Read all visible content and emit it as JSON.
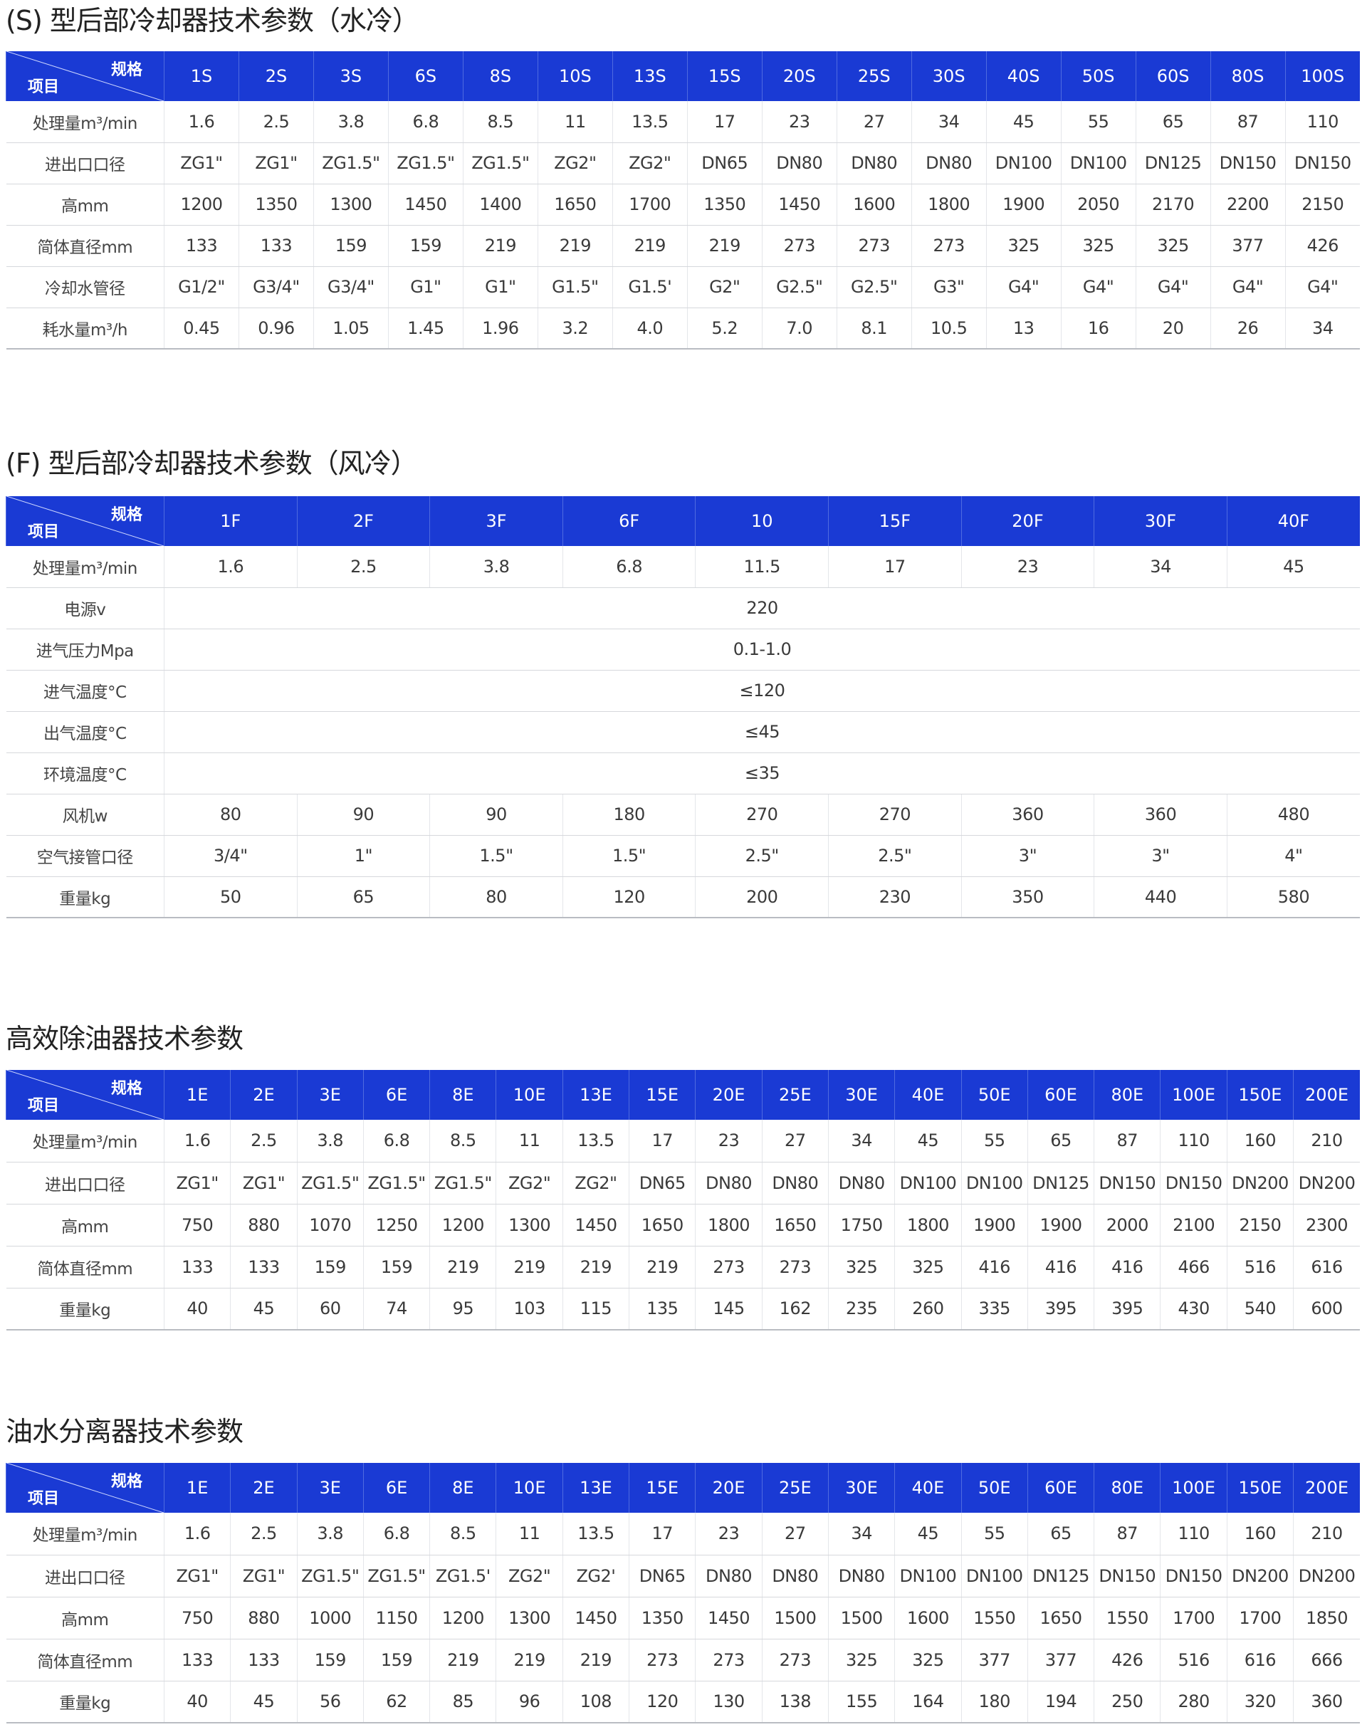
{
  "header_colors": {
    "table_header": "#1a3ad4"
  },
  "tables": [
    {
      "title": "(S) 型后部冷却器技术参数（水冷）",
      "corner_top": "规格",
      "corner_bottom": "项目",
      "columns": [
        "1S",
        "2S",
        "3S",
        "6S",
        "8S",
        "10S",
        "13S",
        "15S",
        "20S",
        "25S",
        "30S",
        "40S",
        "50S",
        "60S",
        "80S",
        "100S"
      ],
      "rows": [
        {
          "label": "处理量m³/min",
          "values": [
            "1.6",
            "2.5",
            "3.8",
            "6.8",
            "8.5",
            "11",
            "13.5",
            "17",
            "23",
            "27",
            "34",
            "45",
            "55",
            "65",
            "87",
            "110"
          ]
        },
        {
          "label": "进出口口径",
          "values": [
            "ZG1\"",
            "ZG1\"",
            "ZG1.5\"",
            "ZG1.5\"",
            "ZG1.5\"",
            "ZG2\"",
            "ZG2\"",
            "DN65",
            "DN80",
            "DN80",
            "DN80",
            "DN100",
            "DN100",
            "DN125",
            "DN150",
            "DN150"
          ]
        },
        {
          "label": "高mm",
          "values": [
            "1200",
            "1350",
            "1300",
            "1450",
            "1400",
            "1650",
            "1700",
            "1350",
            "1450",
            "1600",
            "1800",
            "1900",
            "2050",
            "2170",
            "2200",
            "2150"
          ]
        },
        {
          "label": "简体直径mm",
          "values": [
            "133",
            "133",
            "159",
            "159",
            "219",
            "219",
            "219",
            "219",
            "273",
            "273",
            "273",
            "325",
            "325",
            "325",
            "377",
            "426"
          ]
        },
        {
          "label": "冷却水管径",
          "values": [
            "G1/2\"",
            "G3/4\"",
            "G3/4\"",
            "G1\"",
            "G1\"",
            "G1.5\"",
            "G1.5'",
            "G2\"",
            "G2.5\"",
            "G2.5\"",
            "G3\"",
            "G4\"",
            "G4\"",
            "G4\"",
            "G4\"",
            "G4\""
          ]
        },
        {
          "label": "耗水量m³/h",
          "values": [
            "0.45",
            "0.96",
            "1.05",
            "1.45",
            "1.96",
            "3.2",
            "4.0",
            "5.2",
            "7.0",
            "8.1",
            "10.5",
            "13",
            "16",
            "20",
            "26",
            "34"
          ]
        }
      ]
    },
    {
      "title": "(F) 型后部冷却器技术参数（风冷）",
      "corner_top": "规格",
      "corner_bottom": "项目",
      "columns": [
        "1F",
        "2F",
        "3F",
        "6F",
        "10",
        "15F",
        "20F",
        "30F",
        "40F"
      ],
      "rows": [
        {
          "label": "处理量m³/min",
          "values": [
            "1.6",
            "2.5",
            "3.8",
            "6.8",
            "11.5",
            "17",
            "23",
            "34",
            "45"
          ]
        },
        {
          "label": "电源v",
          "merged": "220"
        },
        {
          "label": "进气压力Mpa",
          "merged": "0.1-1.0"
        },
        {
          "label": "进气温度°C",
          "merged": "≤120"
        },
        {
          "label": "出气温度°C",
          "merged": "≤45"
        },
        {
          "label": "环境温度°C",
          "merged": "≤35"
        },
        {
          "label": "风机w",
          "values": [
            "80",
            "90",
            "90",
            "180",
            "270",
            "270",
            "360",
            "360",
            "480"
          ]
        },
        {
          "label": "空气接管口径",
          "values": [
            "3/4\"",
            "1\"",
            "1.5\"",
            "1.5\"",
            "2.5\"",
            "2.5\"",
            "3\"",
            "3\"",
            "4\""
          ]
        },
        {
          "label": "重量kg",
          "values": [
            "50",
            "65",
            "80",
            "120",
            "200",
            "230",
            "350",
            "440",
            "580"
          ]
        }
      ]
    },
    {
      "title": "高效除油器技术参数",
      "corner_top": "规格",
      "corner_bottom": "项目",
      "columns": [
        "1E",
        "2E",
        "3E",
        "6E",
        "8E",
        "10E",
        "13E",
        "15E",
        "20E",
        "25E",
        "30E",
        "40E",
        "50E",
        "60E",
        "80E",
        "100E",
        "150E",
        "200E"
      ],
      "rows": [
        {
          "label": "处理量m³/min",
          "values": [
            "1.6",
            "2.5",
            "3.8",
            "6.8",
            "8.5",
            "11",
            "13.5",
            "17",
            "23",
            "27",
            "34",
            "45",
            "55",
            "65",
            "87",
            "110",
            "160",
            "210"
          ]
        },
        {
          "label": "进出口口径",
          "values": [
            "ZG1\"",
            "ZG1\"",
            "ZG1.5\"",
            "ZG1.5\"",
            "ZG1.5\"",
            "ZG2\"",
            "ZG2\"",
            "DN65",
            "DN80",
            "DN80",
            "DN80",
            "DN100",
            "DN100",
            "DN125",
            "DN150",
            "DN150",
            "DN200",
            "DN200"
          ]
        },
        {
          "label": "高mm",
          "values": [
            "750",
            "880",
            "1070",
            "1250",
            "1200",
            "1300",
            "1450",
            "1650",
            "1800",
            "1650",
            "1750",
            "1800",
            "1900",
            "1900",
            "2000",
            "2100",
            "2150",
            "2300"
          ]
        },
        {
          "label": "简体直径mm",
          "values": [
            "133",
            "133",
            "159",
            "159",
            "219",
            "219",
            "219",
            "219",
            "273",
            "273",
            "325",
            "325",
            "416",
            "416",
            "416",
            "466",
            "516",
            "616"
          ]
        },
        {
          "label": "重量kg",
          "values": [
            "40",
            "45",
            "60",
            "74",
            "95",
            "103",
            "115",
            "135",
            "145",
            "162",
            "235",
            "260",
            "335",
            "395",
            "395",
            "430",
            "540",
            "600"
          ]
        }
      ]
    },
    {
      "title": "油水分离器技术参数",
      "corner_top": "规格",
      "corner_bottom": "项目",
      "columns": [
        "1E",
        "2E",
        "3E",
        "6E",
        "8E",
        "10E",
        "13E",
        "15E",
        "20E",
        "25E",
        "30E",
        "40E",
        "50E",
        "60E",
        "80E",
        "100E",
        "150E",
        "200E"
      ],
      "rows": [
        {
          "label": "处理量m³/min",
          "values": [
            "1.6",
            "2.5",
            "3.8",
            "6.8",
            "8.5",
            "11",
            "13.5",
            "17",
            "23",
            "27",
            "34",
            "45",
            "55",
            "65",
            "87",
            "110",
            "160",
            "210"
          ]
        },
        {
          "label": "进出口口径",
          "values": [
            "ZG1\"",
            "ZG1\"",
            "ZG1.5\"",
            "ZG1.5\"",
            "ZG1.5'",
            "ZG2\"",
            "ZG2'",
            "DN65",
            "DN80",
            "DN80",
            "DN80",
            "DN100",
            "DN100",
            "DN125",
            "DN150",
            "DN150",
            "DN200",
            "DN200"
          ]
        },
        {
          "label": "高mm",
          "values": [
            "750",
            "880",
            "1000",
            "1150",
            "1200",
            "1300",
            "1450",
            "1350",
            "1450",
            "1500",
            "1500",
            "1600",
            "1550",
            "1650",
            "1550",
            "1700",
            "1700",
            "1850"
          ]
        },
        {
          "label": "简体直径mm",
          "values": [
            "133",
            "133",
            "159",
            "159",
            "219",
            "219",
            "219",
            "273",
            "273",
            "273",
            "325",
            "325",
            "377",
            "377",
            "426",
            "516",
            "616",
            "666"
          ]
        },
        {
          "label": "重量kg",
          "values": [
            "40",
            "45",
            "56",
            "62",
            "85",
            "96",
            "108",
            "120",
            "130",
            "138",
            "155",
            "164",
            "180",
            "194",
            "250",
            "280",
            "320",
            "360"
          ]
        }
      ]
    }
  ]
}
